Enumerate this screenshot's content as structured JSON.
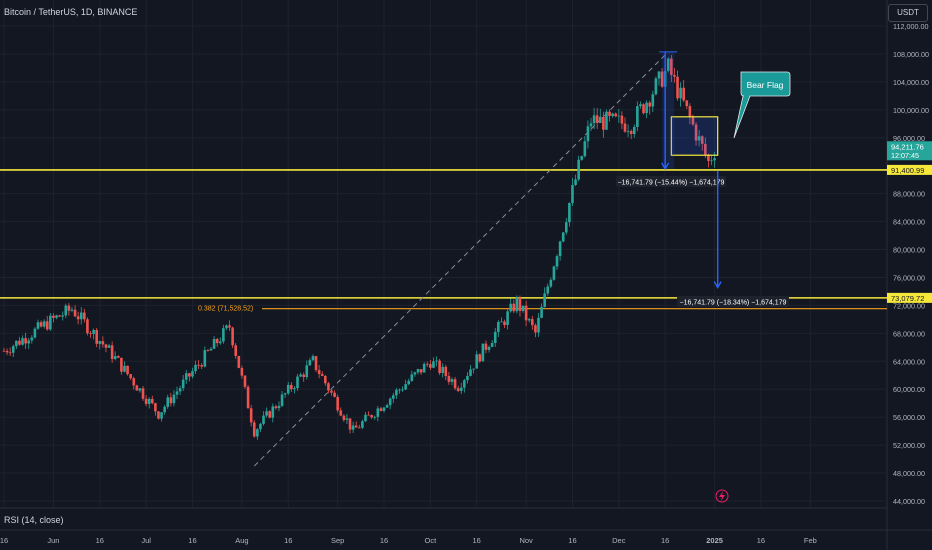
{
  "header": {
    "symbol": "Bitcoin / TetherUS, 1D, BINANCE"
  },
  "currency_button": "USDT",
  "indicator_label": "RSI (14, close)",
  "colors": {
    "background": "#131722",
    "up": "#26a69a",
    "down": "#ef5350",
    "level_line": "#f5e83b",
    "fib_line": "#f7a11a",
    "measure": "#2962ff",
    "callout": "#1b9a9a"
  },
  "price_axis": {
    "ticks": [
      "112,000.00",
      "108,000.00",
      "104,000.00",
      "100,000.00",
      "96,000.00",
      "88,000.00",
      "84,000.00",
      "80,000.00",
      "76,000.00",
      "72,000.00",
      "68,000.00",
      "64,000.00",
      "60,000.00",
      "56,000.00",
      "52,000.00",
      "48,000.00",
      "44,000.00"
    ],
    "current_price": "94,211.76",
    "countdown": "12:07:45",
    "level_high": "91,400.99",
    "level_low": "73,079.72"
  },
  "time_axis": [
    "16",
    "Jun",
    "16",
    "Jul",
    "16",
    "Aug",
    "16",
    "Sep",
    "16",
    "Oct",
    "16",
    "Nov",
    "16",
    "Dec",
    "16",
    "2025",
    "16",
    "Feb"
  ],
  "annotations": {
    "bear_flag": "Bear Flag",
    "fib_label": "0.382 (71,528.52)",
    "measure_top": "−16,741.79 (−15.44%) −1,674,179",
    "measure_bottom": "−16,741.79 (−18.34%) −1,674,179"
  },
  "chart_data": {
    "type": "candlestick",
    "symbol": "Bitcoin / TetherUS",
    "interval": "1D",
    "exchange": "BINANCE",
    "ylim": [
      44000,
      112000
    ],
    "xlim": [
      "2024-05-16",
      "2025-02-08"
    ],
    "grid": true,
    "current_price": 94211.76,
    "horizontal_levels": [
      91400.99,
      73079.72
    ],
    "fib_level": {
      "ratio": 0.382,
      "price": 71528.52
    },
    "trend_line": [
      [
        "2024-08-05",
        49000
      ],
      [
        "2024-12-17",
        108300
      ]
    ],
    "measure_ranges": [
      {
        "x": "2024-12-16",
        "from": 108300,
        "to": 91558,
        "change": -16741.79,
        "percent": -15.44
      },
      {
        "x": "2025-01-02",
        "from": 91300,
        "to": 74558,
        "change": -16741.79,
        "percent": -18.34
      }
    ],
    "bear_flag_box": {
      "x_start": "2024-12-18",
      "x_end": "2025-01-02",
      "y_top": 99000,
      "y_bottom": 93500
    },
    "key_closes": [
      {
        "date": "2024-05-16",
        "close": 65500
      },
      {
        "date": "2024-06-01",
        "close": 70000
      },
      {
        "date": "2024-06-07",
        "close": 71500
      },
      {
        "date": "2024-06-20",
        "close": 65000
      },
      {
        "date": "2024-07-05",
        "close": 56500
      },
      {
        "date": "2024-07-28",
        "close": 69000
      },
      {
        "date": "2024-08-05",
        "close": 54000
      },
      {
        "date": "2024-08-24",
        "close": 64000
      },
      {
        "date": "2024-09-06",
        "close": 54000
      },
      {
        "date": "2024-10-01",
        "close": 64000
      },
      {
        "date": "2024-10-10",
        "close": 60500
      },
      {
        "date": "2024-10-29",
        "close": 72500
      },
      {
        "date": "2024-11-04",
        "close": 68000
      },
      {
        "date": "2024-11-22",
        "close": 98500
      },
      {
        "date": "2024-12-05",
        "close": 98000
      },
      {
        "date": "2024-12-17",
        "close": 106000
      },
      {
        "date": "2024-12-30",
        "close": 92500
      },
      {
        "date": "2025-01-01",
        "close": 94211.76
      }
    ]
  }
}
